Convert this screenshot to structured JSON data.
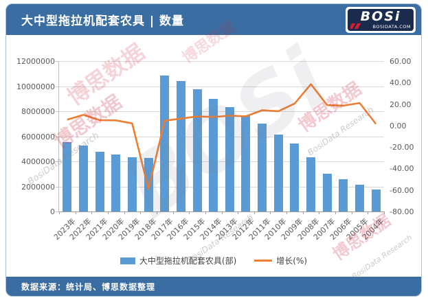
{
  "header": {
    "title": "大中型拖拉机配套农具 | 数量",
    "logo_word": "BOSi",
    "logo_sub": "BOSIDATA.COM"
  },
  "footer": {
    "source": "数据来源：统计局、博思数据整理"
  },
  "watermark": {
    "cn": "博思数据",
    "en": "BosiData Research",
    "logo": "BOSi"
  },
  "colors": {
    "brand_blue": "#3a6da1",
    "bar_blue": "#5b9bd5",
    "line_orange": "#ed7d31"
  },
  "chart_data": {
    "type": "bar",
    "subtype": "bar+line dual axis",
    "categories": [
      "2023年",
      "2022年",
      "2021年",
      "2020年",
      "2019年",
      "2018年",
      "2017年",
      "2016年",
      "2015年",
      "2014年",
      "2013年",
      "2012年",
      "2011年",
      "2010年",
      "2009年",
      "2008年",
      "2007年",
      "2006年",
      "2005年",
      "2004年"
    ],
    "series": [
      {
        "name": "大中型拖拉机配套农具(部)",
        "type": "bar",
        "axis": "left",
        "color": "#5b9bd5",
        "values": [
          5550000,
          5270000,
          4790000,
          4560000,
          4350000,
          4270000,
          10850000,
          10400000,
          9750000,
          8990000,
          8330000,
          7620000,
          7010000,
          6140000,
          5420000,
          4330000,
          3010000,
          2580000,
          2140000,
          1750000
        ]
      },
      {
        "name": "增长(%)",
        "type": "line",
        "axis": "right",
        "color": "#ed7d31",
        "values": [
          5.5,
          10.0,
          5.0,
          4.8,
          2.0,
          -59.0,
          4.5,
          6.5,
          8.5,
          8.0,
          9.2,
          8.6,
          14.2,
          13.4,
          20.5,
          38.5,
          19.0,
          18.5,
          21.0,
          1.5
        ]
      }
    ],
    "left_axis": {
      "min": 0,
      "max": 12000000,
      "step": 2000000,
      "ticks": [
        "0",
        "2000000",
        "4000000",
        "6000000",
        "8000000",
        "10000000",
        "12000000"
      ]
    },
    "right_axis": {
      "min": -80,
      "max": 60,
      "step": 20,
      "ticks": [
        "-80.00",
        "-60.00",
        "-40.00",
        "-20.00",
        "0.00",
        "20.00",
        "40.00",
        "60.00"
      ]
    },
    "grid": true,
    "legend_position": "bottom",
    "title": "大中型拖拉机配套农具 | 数量"
  }
}
